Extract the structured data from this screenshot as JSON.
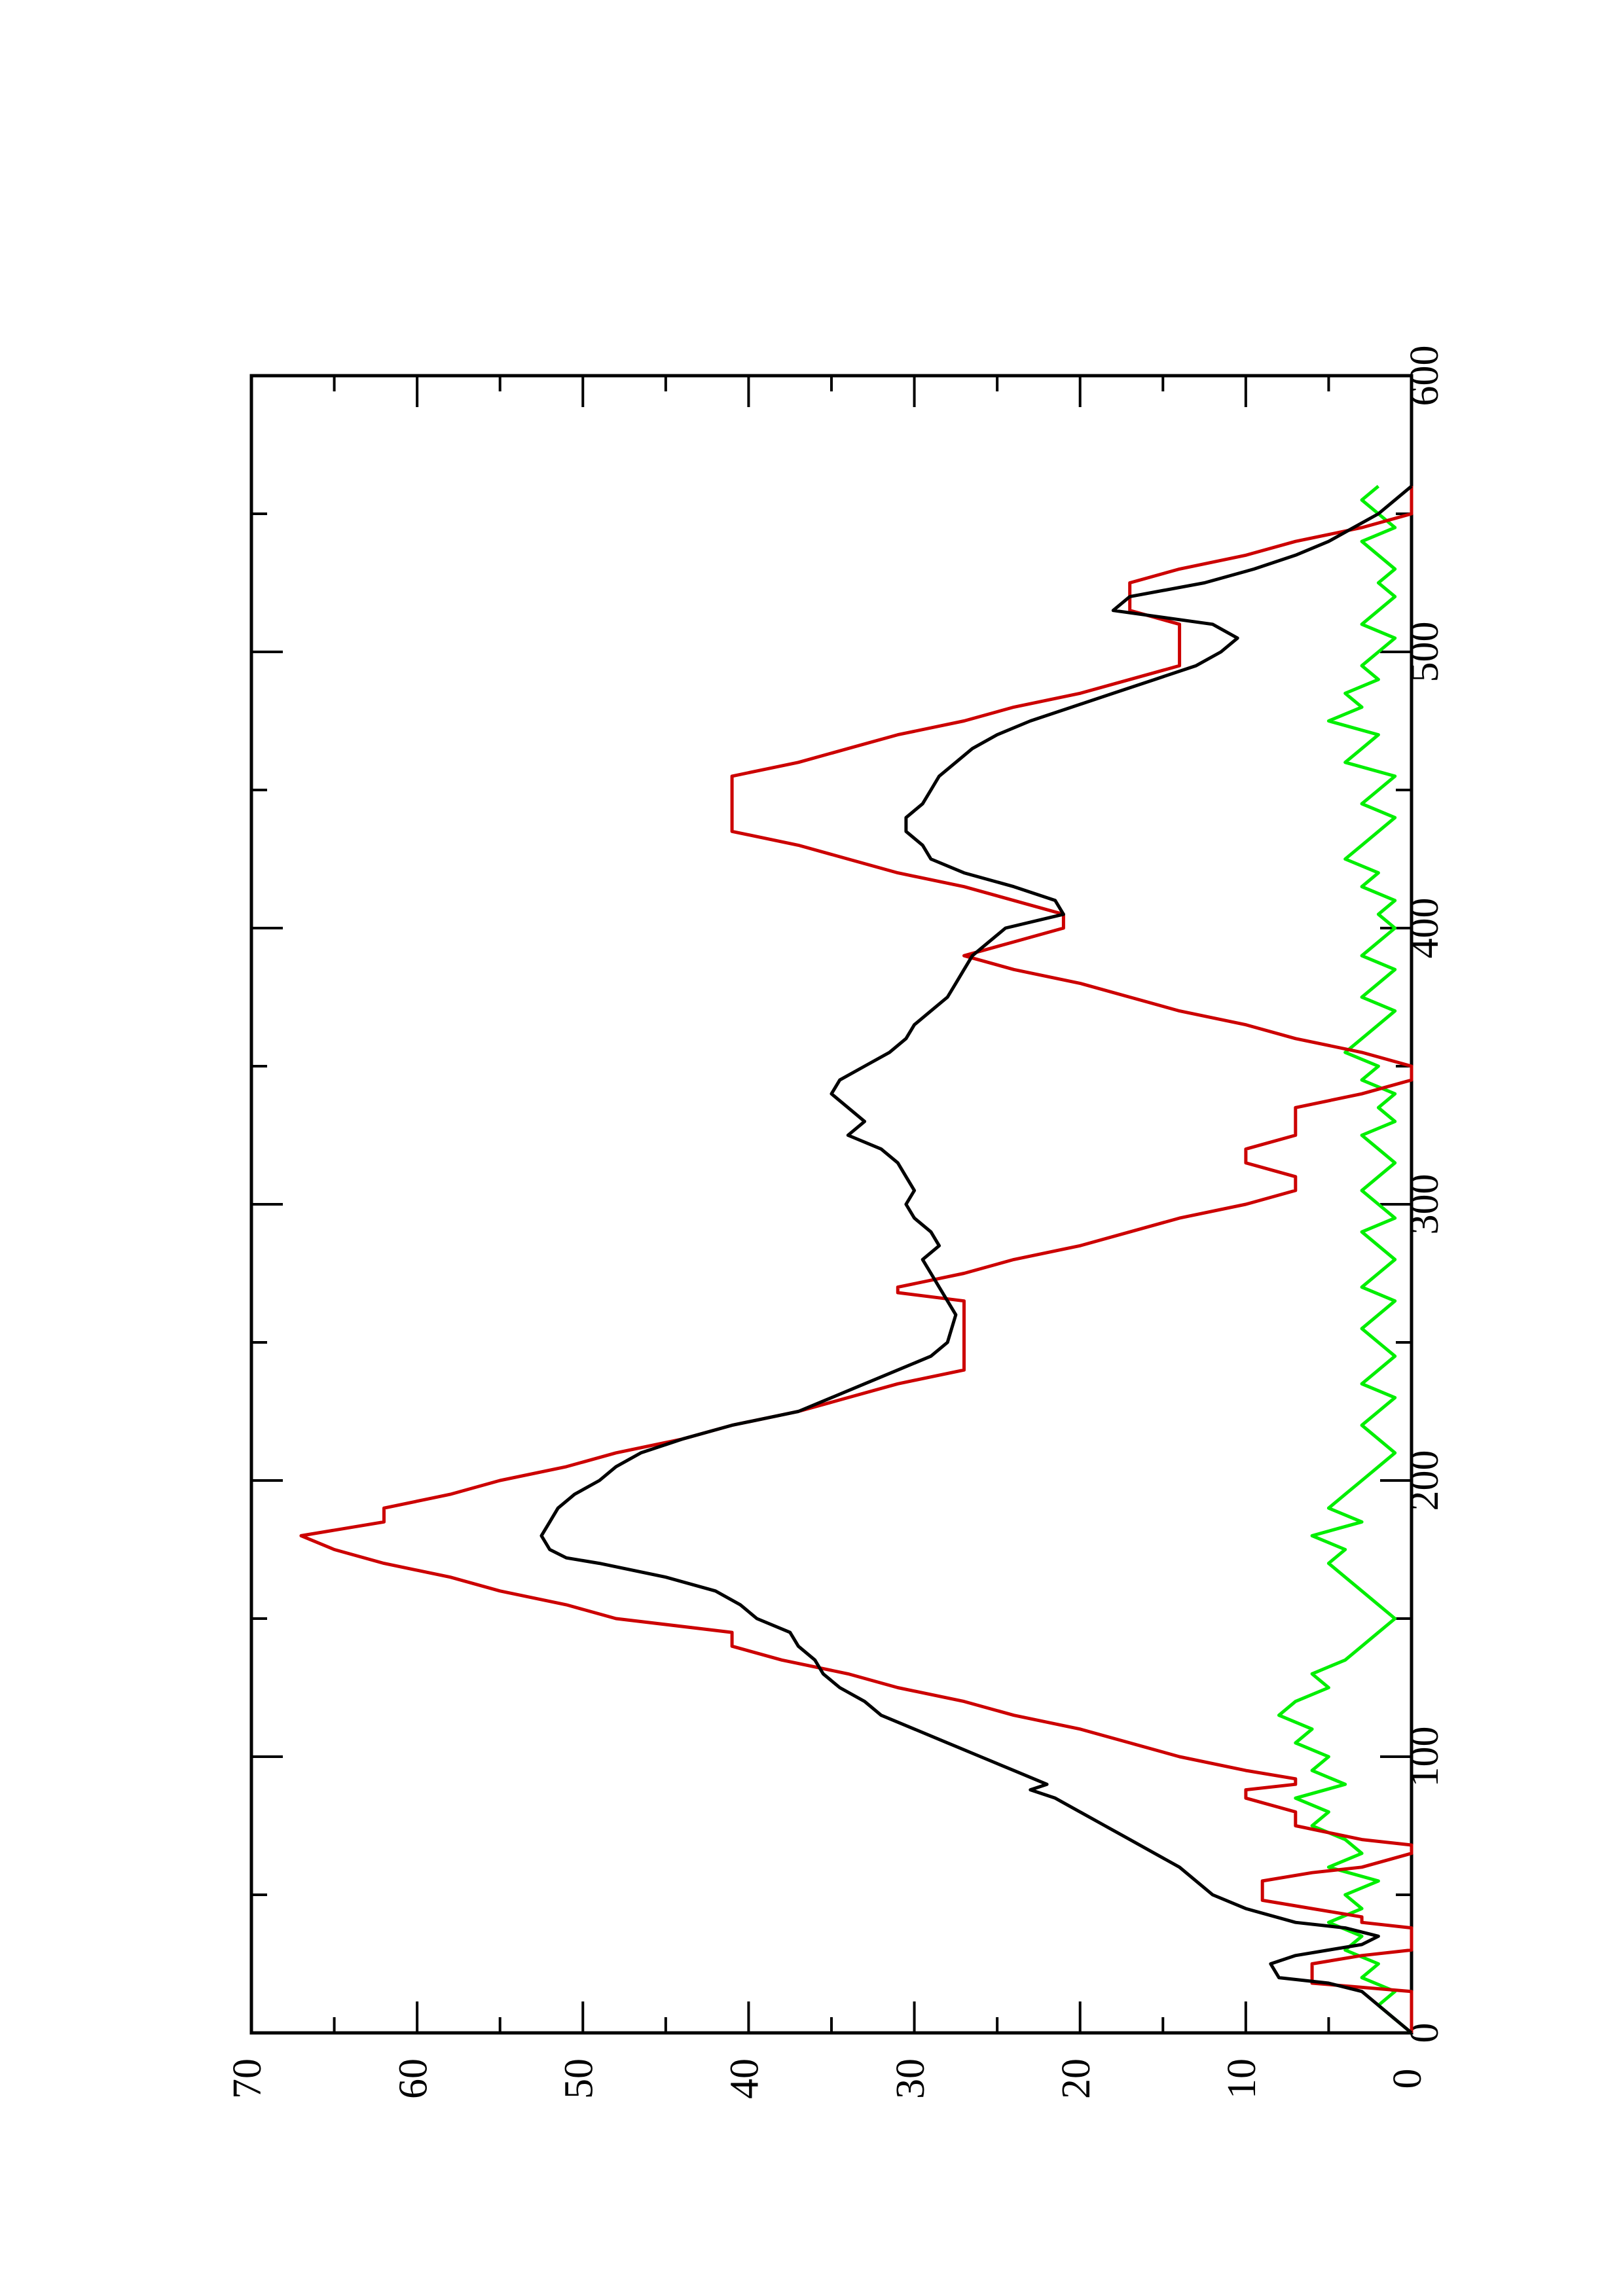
{
  "chart_data": {
    "type": "line",
    "orientation": "rotated-90-ccw",
    "title": "",
    "xlabel": "",
    "ylabel": "",
    "xlim": [
      0,
      600
    ],
    "ylim": [
      0,
      70
    ],
    "x_ticks": [
      "0",
      "100",
      "200",
      "300",
      "400",
      "500",
      "600"
    ],
    "y_ticks": [
      "0",
      "10",
      "20",
      "30",
      "40",
      "50",
      "60",
      "70"
    ],
    "grid": false,
    "legend": "none",
    "series": [
      {
        "color": "#000000",
        "x": [
          0,
          5,
          10,
          15,
          18,
          20,
          25,
          28,
          30,
          32,
          35,
          38,
          40,
          45,
          50,
          55,
          60,
          65,
          70,
          75,
          80,
          85,
          88,
          90,
          95,
          100,
          105,
          110,
          115,
          120,
          125,
          130,
          135,
          140,
          145,
          150,
          155,
          160,
          165,
          170,
          172,
          175,
          180,
          185,
          190,
          195,
          200,
          205,
          210,
          215,
          220,
          225,
          230,
          235,
          240,
          245,
          250,
          260,
          265,
          270,
          275,
          280,
          285,
          290,
          295,
          300,
          305,
          310,
          315,
          320,
          325,
          330,
          335,
          340,
          345,
          350,
          355,
          360,
          365,
          370,
          375,
          380,
          385,
          390,
          395,
          400,
          405,
          410,
          415,
          420,
          425,
          430,
          435,
          440,
          445,
          450,
          455,
          460,
          465,
          470,
          475,
          480,
          485,
          490,
          495,
          500,
          505,
          510,
          515,
          520,
          525,
          530,
          535,
          540,
          545,
          550,
          555,
          560
        ],
        "y": [
          0,
          1,
          2,
          3,
          5,
          8,
          8.5,
          7,
          5,
          3,
          2,
          4,
          7,
          10,
          12,
          13,
          14,
          15.5,
          17,
          18.5,
          20,
          21.5,
          23,
          22,
          24,
          26,
          28,
          30,
          32,
          33,
          34.5,
          35.5,
          36,
          37,
          37.5,
          39.5,
          40.5,
          42,
          45,
          49,
          51,
          52,
          52.5,
          52,
          51.5,
          50.5,
          49,
          48,
          46.5,
          44,
          41,
          37,
          35,
          33,
          31,
          29,
          28,
          27.5,
          28,
          28.5,
          29,
          29.5,
          28.5,
          29,
          30,
          30.5,
          30,
          30.5,
          31,
          32,
          34,
          33,
          34,
          35,
          34.5,
          33,
          31.5,
          30.5,
          30,
          29,
          28,
          27.5,
          27,
          26.5,
          25.5,
          24.5,
          21,
          21.5,
          24,
          27,
          29,
          29.5,
          30.5,
          30.5,
          29.5,
          29,
          28.5,
          27.5,
          26.5,
          25,
          23,
          20.5,
          18,
          15.5,
          13,
          11.5,
          10.5,
          12,
          18,
          17,
          12.5,
          9.5,
          7,
          5,
          3.5,
          2,
          1,
          0
        ]
      },
      {
        "color": "#cc0000",
        "x": [
          0,
          5,
          10,
          15,
          18,
          20,
          25,
          28,
          30,
          35,
          38,
          40,
          42,
          45,
          48,
          50,
          55,
          58,
          60,
          65,
          68,
          70,
          75,
          80,
          85,
          88,
          90,
          92,
          95,
          100,
          105,
          110,
          115,
          120,
          125,
          130,
          135,
          140,
          145,
          150,
          155,
          160,
          165,
          170,
          175,
          180,
          185,
          190,
          195,
          200,
          205,
          210,
          215,
          220,
          225,
          230,
          235,
          240,
          245,
          250,
          255,
          260,
          262,
          265,
          268,
          270,
          275,
          280,
          285,
          290,
          295,
          300,
          305,
          310,
          315,
          320,
          325,
          330,
          335,
          340,
          345,
          350,
          355,
          360,
          365,
          370,
          375,
          380,
          385,
          390,
          395,
          400,
          405,
          410,
          415,
          420,
          425,
          430,
          435,
          440,
          445,
          450,
          455,
          460,
          465,
          470,
          475,
          480,
          485,
          490,
          495,
          500,
          505,
          510,
          515,
          520,
          525,
          530,
          535,
          540,
          545,
          550,
          555,
          560
        ],
        "y": [
          0,
          0,
          0,
          0,
          6,
          6,
          6,
          3,
          0,
          0,
          0,
          3,
          3,
          6,
          9,
          9,
          9,
          6,
          3,
          0,
          0,
          3,
          7,
          7,
          10,
          10,
          7,
          7,
          10,
          14,
          17,
          20,
          24,
          27,
          31,
          34,
          38,
          41,
          41,
          48,
          51,
          55,
          58,
          62,
          65,
          67,
          62,
          62,
          58,
          55,
          51,
          48,
          44,
          41,
          37,
          34,
          31,
          27,
          27,
          27,
          27,
          27,
          27,
          27,
          31,
          31,
          27,
          24,
          20,
          17,
          14,
          10,
          7,
          7,
          10,
          10,
          7,
          7,
          7,
          3,
          0,
          0,
          3,
          7,
          10,
          14,
          17,
          20,
          24,
          27,
          24,
          21,
          21,
          24,
          27,
          31,
          34,
          37,
          41,
          41,
          41,
          41,
          41,
          37,
          34,
          31,
          27,
          24,
          20,
          17,
          14,
          14,
          14,
          14,
          17,
          17,
          17,
          14,
          10,
          7,
          3,
          0,
          0,
          0
        ]
      },
      {
        "color": "#00ee00",
        "x": [
          0,
          5,
          10,
          15,
          20,
          25,
          30,
          35,
          40,
          45,
          50,
          55,
          60,
          65,
          70,
          75,
          80,
          85,
          90,
          95,
          100,
          105,
          110,
          115,
          120,
          125,
          130,
          135,
          140,
          145,
          150,
          155,
          160,
          165,
          170,
          175,
          180,
          185,
          190,
          195,
          200,
          205,
          210,
          215,
          220,
          225,
          230,
          235,
          240,
          245,
          250,
          255,
          260,
          265,
          270,
          275,
          280,
          285,
          290,
          295,
          300,
          305,
          310,
          315,
          320,
          325,
          330,
          335,
          340,
          345,
          350,
          355,
          360,
          365,
          370,
          375,
          380,
          385,
          390,
          395,
          400,
          405,
          410,
          415,
          420,
          425,
          430,
          435,
          440,
          445,
          450,
          455,
          460,
          465,
          470,
          475,
          480,
          485,
          490,
          495,
          500,
          505,
          510,
          515,
          520,
          525,
          530,
          535,
          540,
          545,
          550,
          555,
          560
        ],
        "y": [
          0,
          1,
          2,
          1,
          3,
          2,
          4,
          3,
          5,
          3,
          4,
          2,
          5,
          3,
          4,
          6,
          5,
          7,
          4,
          6,
          5,
          7,
          6,
          8,
          7,
          5,
          6,
          4,
          3,
          2,
          1,
          2,
          3,
          4,
          5,
          4,
          6,
          3,
          5,
          4,
          3,
          2,
          1,
          2,
          3,
          2,
          1,
          3,
          2,
          1,
          2,
          3,
          2,
          1,
          3,
          2,
          1,
          2,
          3,
          1,
          2,
          3,
          2,
          1,
          2,
          3,
          1,
          2,
          1,
          3,
          2,
          4,
          3,
          2,
          1,
          3,
          2,
          1,
          3,
          2,
          1,
          2,
          1,
          3,
          2,
          4,
          3,
          2,
          1,
          3,
          2,
          1,
          4,
          3,
          2,
          5,
          3,
          4,
          2,
          3,
          2,
          1,
          3,
          2,
          1,
          2,
          1,
          2,
          3,
          1,
          2,
          3,
          2
        ]
      }
    ]
  }
}
